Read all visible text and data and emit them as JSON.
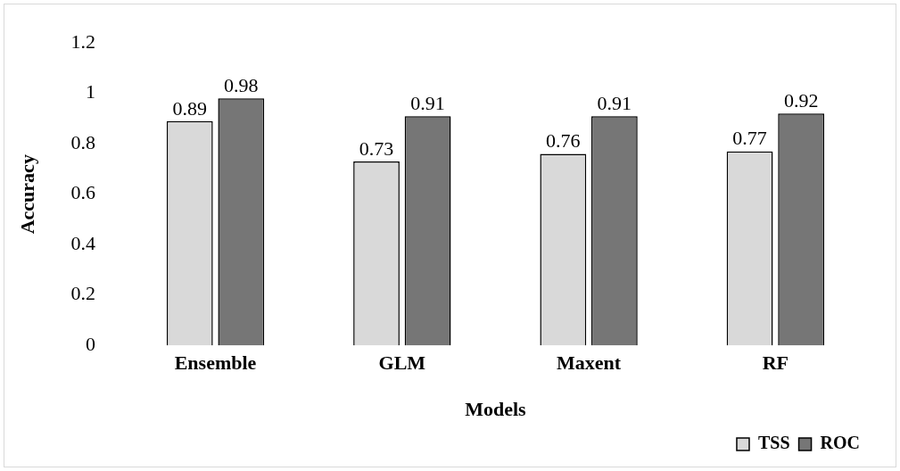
{
  "chart_data": {
    "type": "bar",
    "xlabel": "Models",
    "ylabel": "Accuracy",
    "categories": [
      "Ensemble",
      "GLM",
      "Maxent",
      "RF"
    ],
    "series": [
      {
        "name": "TSS",
        "color": "#d9d9d9",
        "values": [
          0.89,
          0.73,
          0.76,
          0.77
        ]
      },
      {
        "name": "ROC",
        "color": "#767676",
        "values": [
          0.98,
          0.91,
          0.91,
          0.92
        ]
      }
    ],
    "ylim": [
      0,
      1.2
    ],
    "yticks": [
      0,
      0.2,
      0.4,
      0.6,
      0.8,
      1,
      1.2
    ],
    "grid": false,
    "legend": "bottom right",
    "data_labels": true
  }
}
